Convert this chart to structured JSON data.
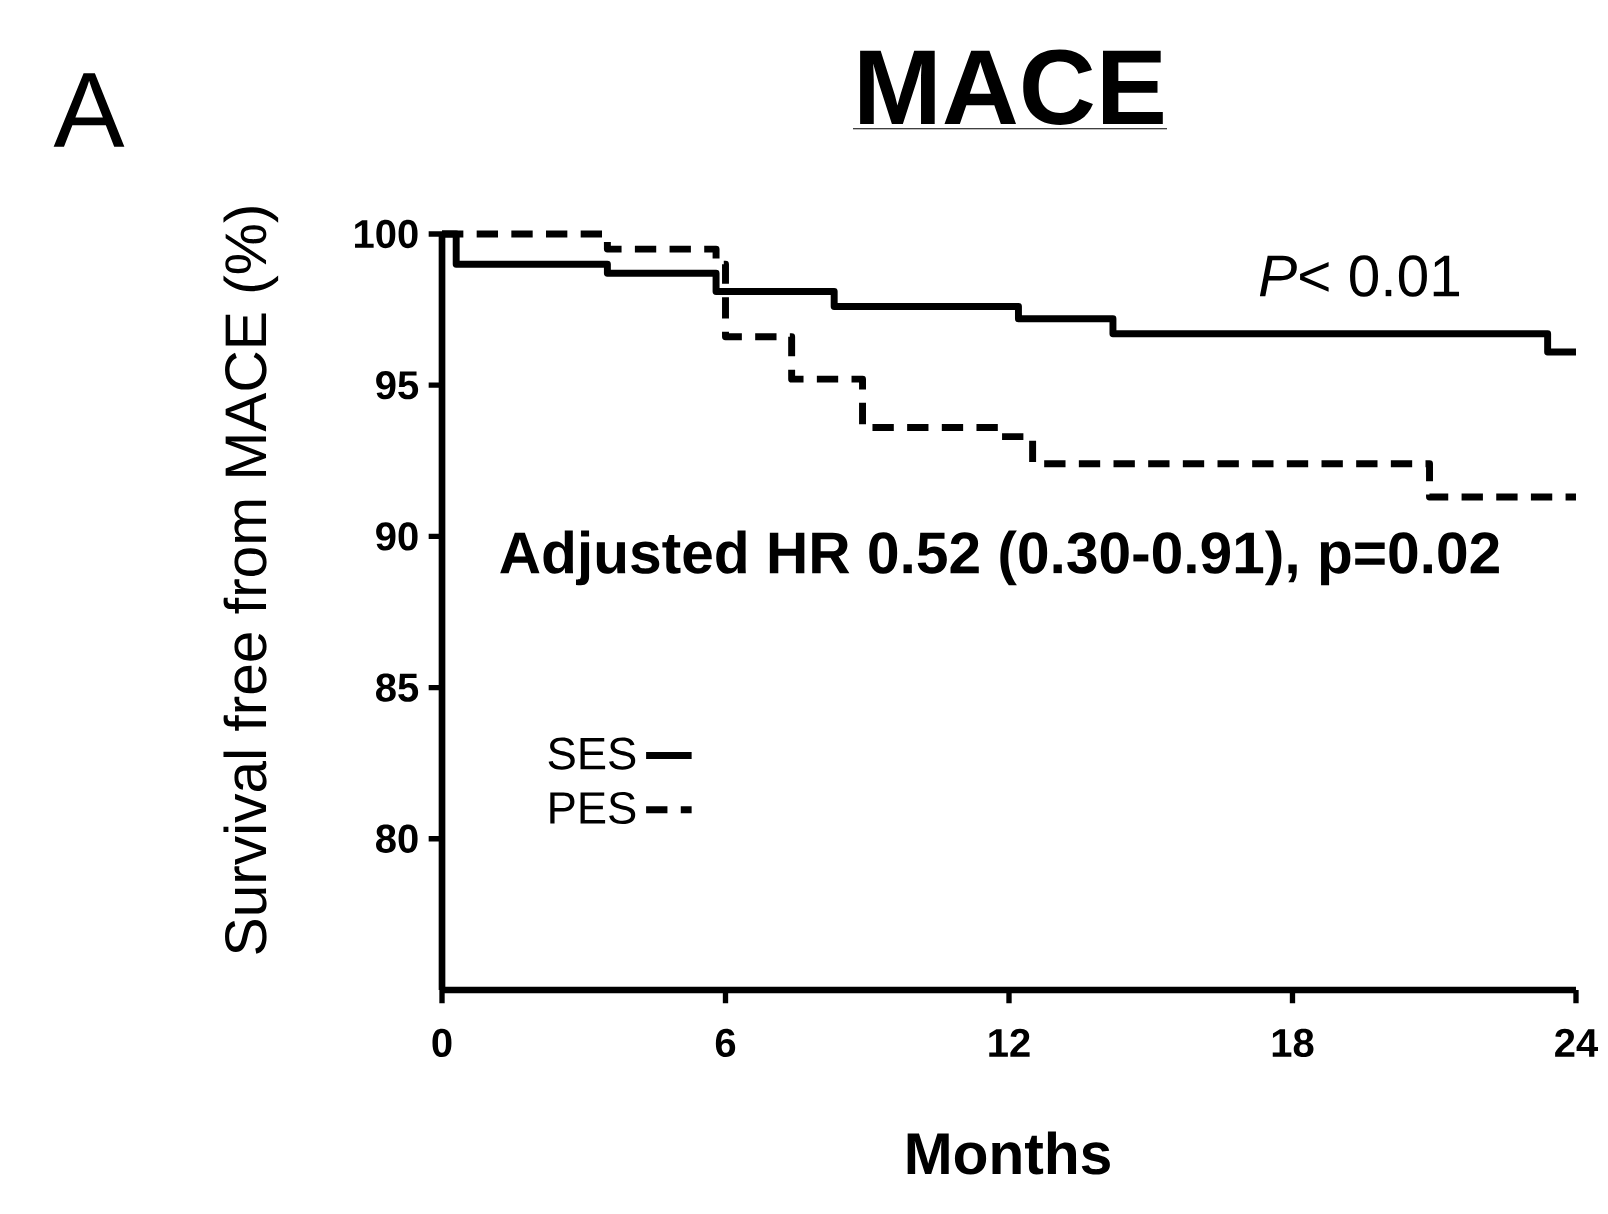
{
  "chart_data": {
    "type": "step",
    "title": "MACE",
    "xlabel": "Months",
    "ylabel": "Survival free from MACE (%)",
    "annotations": [
      "A",
      "*P*< 0.01",
      "Adjusted HR 0.52 (0.30-0.91), p=0.02"
    ],
    "xlim": [
      0,
      24
    ],
    "xticks": [
      0,
      6,
      12,
      18,
      24
    ],
    "ylim": [
      75,
      100
    ],
    "yticks": [
      80,
      85,
      90,
      95,
      100
    ],
    "grid": false,
    "legend": "bottom left",
    "marker": "none",
    "series": [
      {
        "name": "SES",
        "color": "#000000",
        "line_style": "solid",
        "x": [
          0,
          0.3,
          3.5,
          5.8,
          8.3,
          12.2,
          14.2,
          23.4,
          24
        ],
        "values": [
          100,
          99.0,
          98.7,
          98.1,
          97.6,
          97.2,
          96.7,
          96.1,
          96.1
        ]
      },
      {
        "name": "PES",
        "color": "#000000",
        "line_style": "dashed",
        "x": [
          0,
          3.5,
          5.8,
          6.0,
          7.4,
          8.9,
          11.8,
          12.5,
          20.9,
          24
        ],
        "values": [
          100,
          99.5,
          99.0,
          96.6,
          95.2,
          93.6,
          93.3,
          92.4,
          91.3,
          91.3
        ]
      }
    ]
  }
}
